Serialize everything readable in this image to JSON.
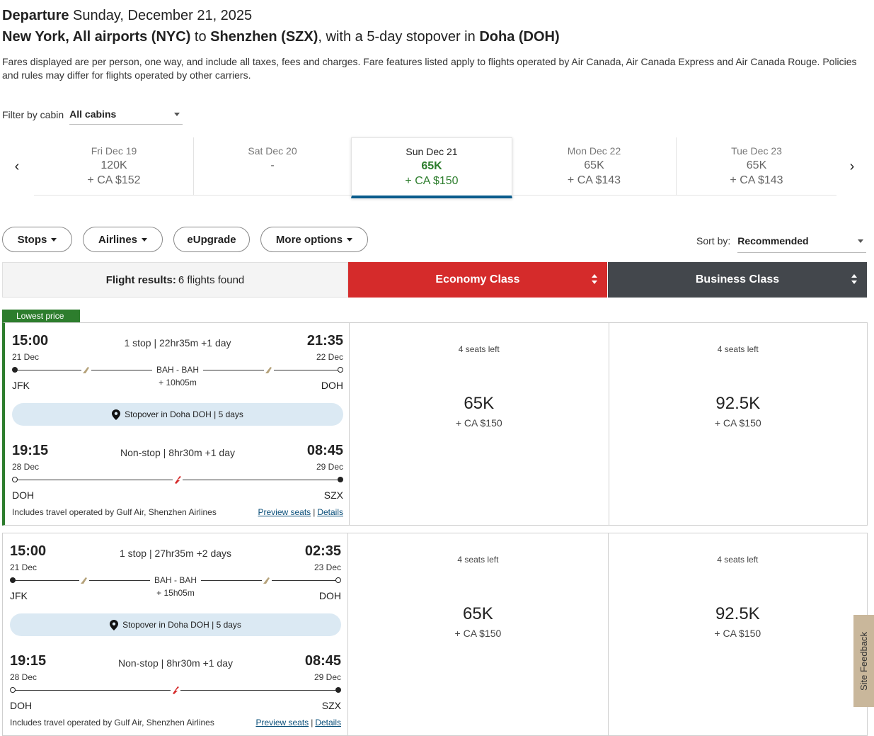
{
  "header": {
    "departure_label": "Departure",
    "departure_date": "Sunday, December 21, 2025",
    "origin": "New York, All airports (NYC)",
    "to_word": "to",
    "destination": "Shenzhen (SZX)",
    "stopover_text": ", with a 5-day stopover in",
    "stopover_city": "Doha (DOH)",
    "disclaimer": "Fares displayed are per person, one way, and include all taxes, fees and charges. Fare features listed apply to flights operated by Air Canada, Air Canada Express and Air Canada Rouge. Policies and rules may differ for flights operated by other carriers."
  },
  "filter": {
    "label": "Filter by cabin",
    "value": "All cabins"
  },
  "dates": [
    {
      "name": "Fri Dec 19",
      "points": "120K",
      "cash": "+ CA $152"
    },
    {
      "name": "Sat Dec 20",
      "points": "-",
      "cash": ""
    },
    {
      "name": "Sun Dec 21",
      "points": "65K",
      "cash": "+ CA $150"
    },
    {
      "name": "Mon Dec 22",
      "points": "65K",
      "cash": "+ CA $143"
    },
    {
      "name": "Tue Dec 23",
      "points": "65K",
      "cash": "+ CA $143"
    }
  ],
  "nav": {
    "prev": "‹",
    "next": "›"
  },
  "pills": {
    "stops": "Stops",
    "airlines": "Airlines",
    "eupgrade": "eUpgrade",
    "more": "More options"
  },
  "sort": {
    "label": "Sort by:",
    "value": "Recommended"
  },
  "results": {
    "label": "Flight results:",
    "count": "6 flights found",
    "economy": "Economy Class",
    "business": "Business Class"
  },
  "badge": "Lowest price",
  "flights": [
    {
      "out": {
        "dep_time": "15:00",
        "dep_date": "21 Dec",
        "summary": "1 stop | 22hr35m +1 day",
        "arr_time": "21:35",
        "arr_date": "22 Dec",
        "via": "BAH  - BAH",
        "layover": "+ 10h05m",
        "dep_airport": "JFK",
        "arr_airport": "DOH"
      },
      "stopover": "Stopover in Doha DOH | 5 days",
      "ret": {
        "dep_time": "19:15",
        "dep_date": "28 Dec",
        "summary": "Non-stop | 8hr30m +1 day",
        "arr_time": "08:45",
        "arr_date": "29 Dec",
        "dep_airport": "DOH",
        "arr_airport": "SZX"
      },
      "operated": "Includes travel operated by Gulf Air, Shenzhen Airlines",
      "preview": "Preview seats",
      "sep": "|",
      "details": "Details",
      "economy": {
        "seats": "4 seats left",
        "points": "65K",
        "cash": "+ CA $150"
      },
      "business": {
        "seats": "4 seats left",
        "points": "92.5K",
        "cash": "+ CA $150"
      }
    },
    {
      "out": {
        "dep_time": "15:00",
        "dep_date": "21 Dec",
        "summary": "1 stop | 27hr35m +2 days",
        "arr_time": "02:35",
        "arr_date": "23 Dec",
        "via": "BAH  - BAH",
        "layover": "+ 15h05m",
        "dep_airport": "JFK",
        "arr_airport": "DOH"
      },
      "stopover": "Stopover in Doha DOH | 5 days",
      "ret": {
        "dep_time": "19:15",
        "dep_date": "28 Dec",
        "summary": "Non-stop | 8hr30m +1 day",
        "arr_time": "08:45",
        "arr_date": "29 Dec",
        "dep_airport": "DOH",
        "arr_airport": "SZX"
      },
      "operated": "Includes travel operated by Gulf Air, Shenzhen Airlines",
      "preview": "Preview seats",
      "sep": "|",
      "details": "Details",
      "economy": {
        "seats": "4 seats left",
        "points": "65K",
        "cash": "+ CA $150"
      },
      "business": {
        "seats": "4 seats left",
        "points": "92.5K",
        "cash": "+ CA $150"
      }
    }
  ],
  "feedback": "Site Feedback",
  "colors": {
    "economy": "#d52b2b",
    "business": "#43474c",
    "green": "#2d7d2d",
    "active_underline": "#0a5c8c",
    "stopover_bg": "#dbe9f3",
    "feedback_bg": "#c9b79b"
  }
}
